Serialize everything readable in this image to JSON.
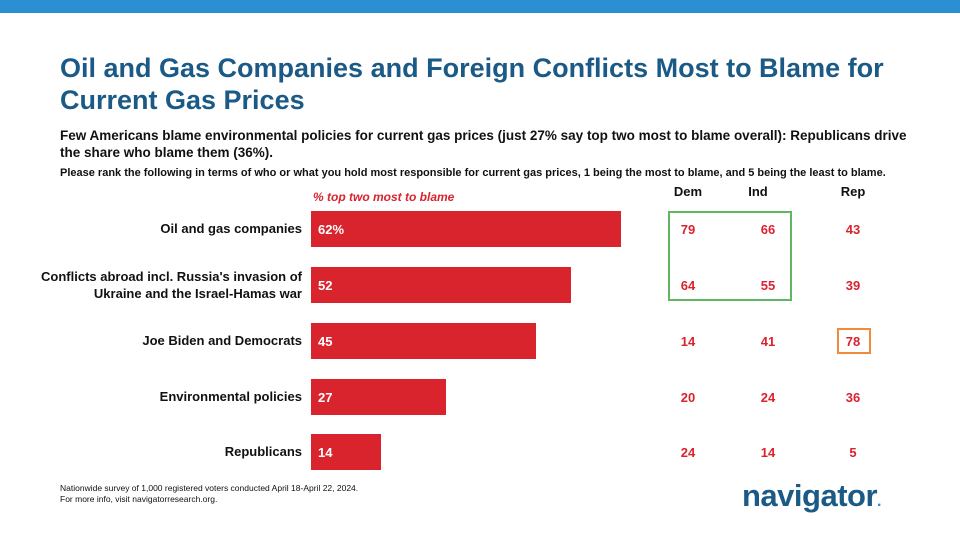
{
  "title": "Oil and Gas Companies and Foreign Conflicts Most to Blame for Current Gas Prices",
  "subtitle": "Few Americans blame environmental policies for current gas prices (just 27% say top two most to blame overall): Republicans drive the share who blame them (36%).",
  "question": "Please rank the following in terms of who or what you hold most responsible for current gas prices, 1 being the most to blame, and 5 being the least to blame.",
  "footnote": {
    "line1": "Nationwide survey of 1,000 registered voters conducted April 18-April 22, 2024.",
    "line2": "For more info, visit navigatorresearch.org."
  },
  "logo": {
    "text": "navigator",
    "dot": "."
  },
  "colors": {
    "bar": "#d9232d",
    "title": "#1b5a86",
    "accent_blue": "#2c8fd3",
    "highlight_green": "#5fb85f",
    "highlight_orange": "#f08a3c"
  },
  "chart_data": {
    "type": "bar",
    "orientation": "horizontal",
    "label": "% top two most to blame",
    "categories": [
      "Oil and gas companies",
      "Conflicts abroad incl. Russia's invasion of Ukraine and the Israel-Hamas war",
      "Joe Biden and Democrats",
      "Environmental policies",
      "Republicans"
    ],
    "values": [
      62,
      52,
      45,
      27,
      14
    ],
    "value_labels": [
      "62%",
      "52",
      "45",
      "27",
      "14"
    ],
    "xlim": [
      0,
      100
    ],
    "columns": [
      "Dem",
      "Ind",
      "Rep"
    ],
    "table": [
      [
        79,
        66,
        43
      ],
      [
        64,
        55,
        39
      ],
      [
        14,
        41,
        78
      ],
      [
        20,
        24,
        36
      ],
      [
        24,
        14,
        5
      ]
    ]
  }
}
